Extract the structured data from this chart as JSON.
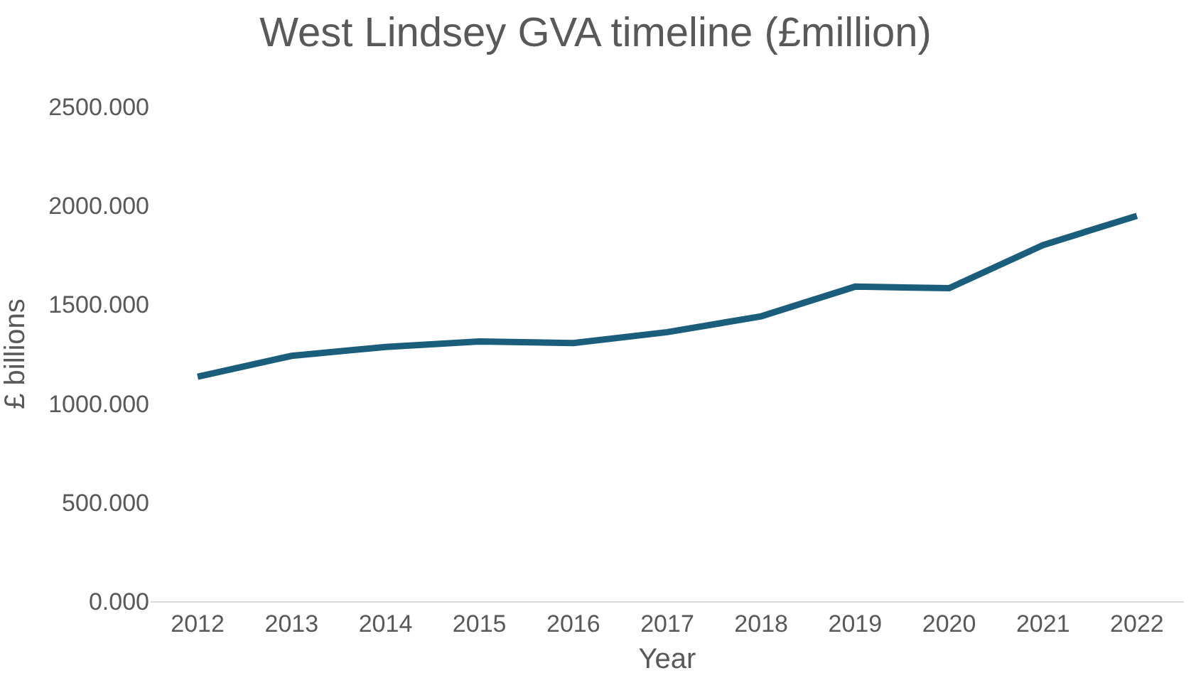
{
  "chart_data": {
    "type": "line",
    "title": "West Lindsey GVA timeline (£million)",
    "xlabel": "Year",
    "ylabel": "£ billions",
    "categories": [
      "2012",
      "2013",
      "2014",
      "2015",
      "2016",
      "2017",
      "2018",
      "2019",
      "2020",
      "2021",
      "2022"
    ],
    "series": [
      {
        "color": "#1b5e7b",
        "values": [
          1135,
          1240,
          1285,
          1313,
          1305,
          1360,
          1440,
          1590,
          1582,
          1800,
          1948
        ]
      }
    ],
    "ylim": [
      0,
      2500
    ],
    "yticks": [
      {
        "value": 0,
        "label": "0.000"
      },
      {
        "value": 500,
        "label": "500.000"
      },
      {
        "value": 1000,
        "label": "1000.000"
      },
      {
        "value": 1500,
        "label": "1500.000"
      },
      {
        "value": 2000,
        "label": "2000.000"
      },
      {
        "value": 2500,
        "label": "2500.000"
      }
    ],
    "grid": false,
    "marker": "none",
    "line_style": "solid"
  }
}
